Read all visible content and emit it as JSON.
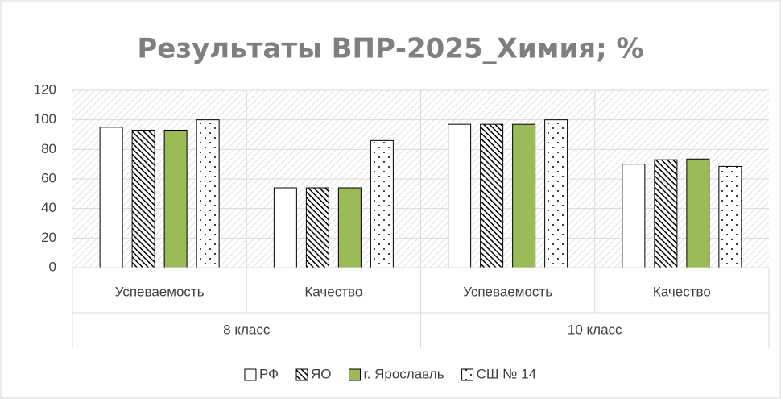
{
  "chart_data": {
    "type": "bar",
    "title": "Результаты ВПР-2025_Химия; %",
    "categories": [
      "Успеваемость",
      "Качество",
      "Успеваемость",
      "Качество"
    ],
    "category_groups": [
      "8 класс",
      "10 класс"
    ],
    "series": [
      {
        "name": "РФ",
        "color": "#ffffff",
        "pattern": "solid",
        "values": [
          95,
          54,
          97,
          70
        ]
      },
      {
        "name": "ЯО",
        "color": "#000000",
        "pattern": "diagonal",
        "values": [
          93,
          54,
          97,
          73
        ]
      },
      {
        "name": "г. Ярославль",
        "color": "#9bbb59",
        "pattern": "solid",
        "values": [
          93,
          54,
          97,
          73.5
        ]
      },
      {
        "name": "СШ № 14",
        "color": "#000000",
        "pattern": "dots",
        "values": [
          100,
          86,
          100,
          68.5
        ]
      }
    ],
    "ylim": [
      0,
      120
    ],
    "yticks": [
      0,
      20,
      40,
      60,
      80,
      100,
      120
    ],
    "grid": true,
    "legend": "bottom"
  }
}
